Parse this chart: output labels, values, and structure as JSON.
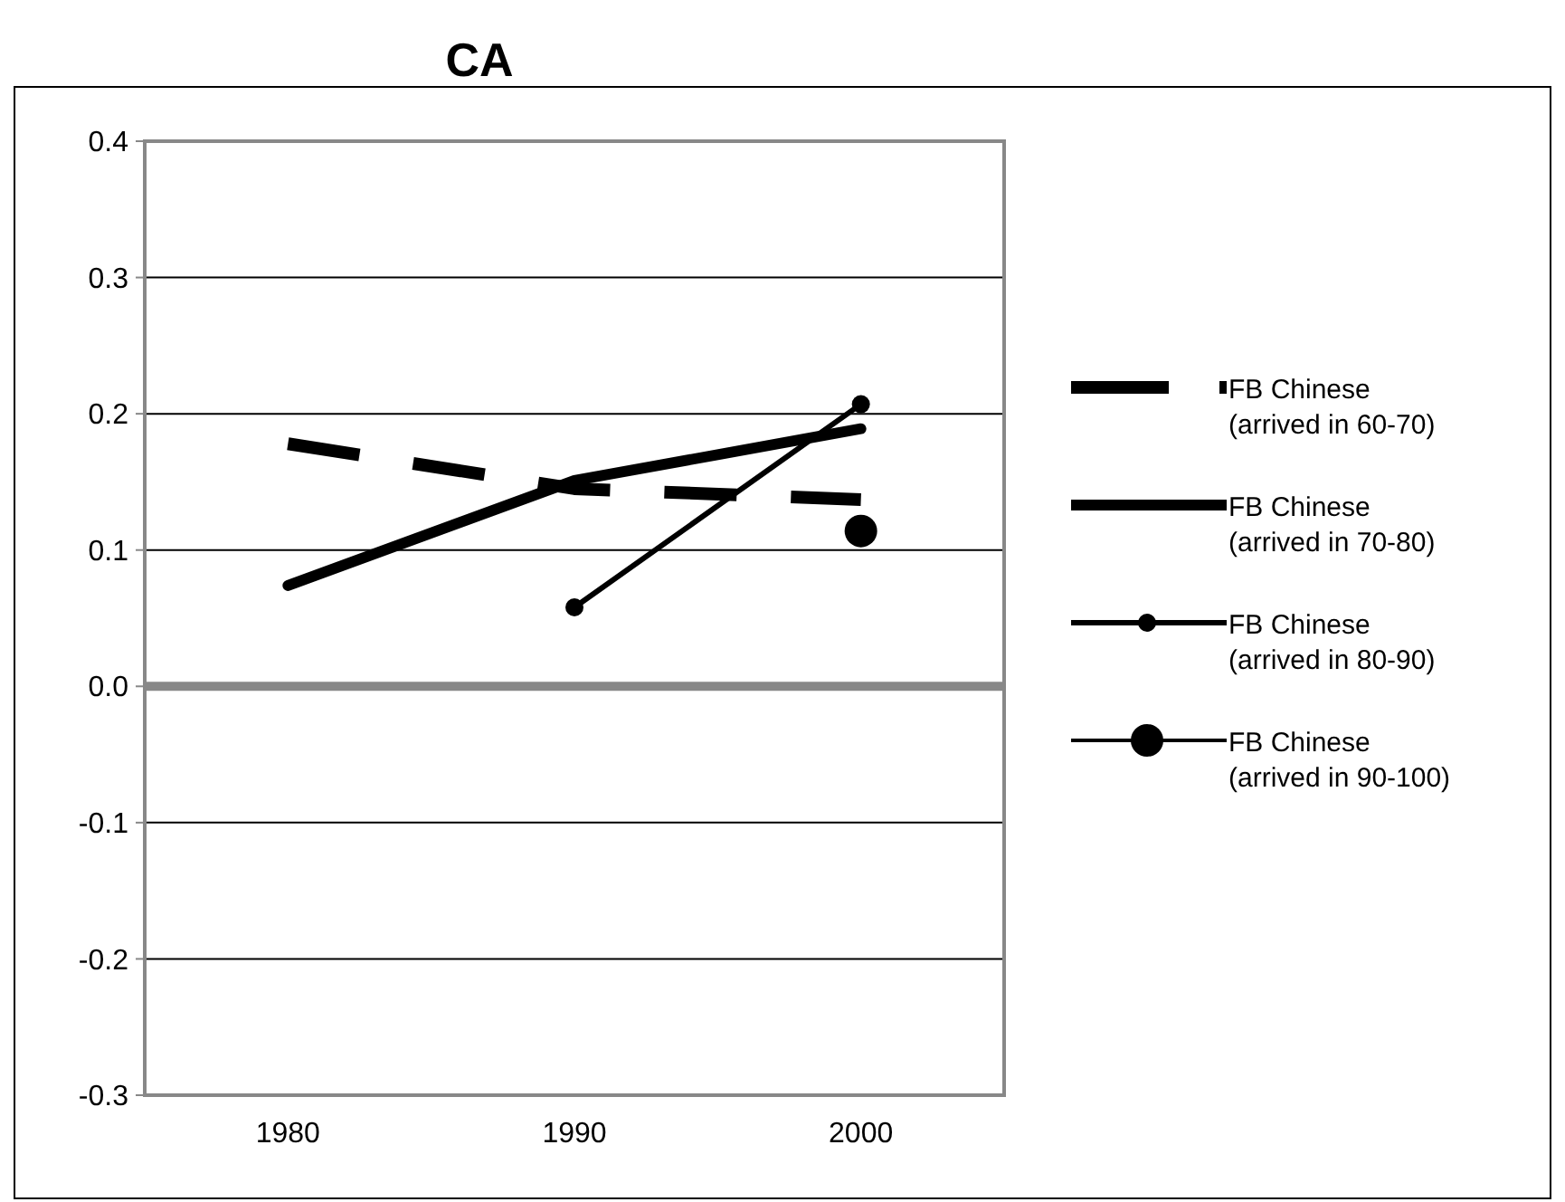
{
  "chart_data": {
    "type": "line",
    "title": "CA",
    "categories": [
      "1980",
      "1990",
      "2000"
    ],
    "series": [
      {
        "name": "FB Chinese (arrived in 60-70)",
        "color": "#000000",
        "values": [
          0.178,
          0.145,
          0.137
        ],
        "line_style": "dashed",
        "marker": "none"
      },
      {
        "name": "FB Chinese (arrived in 70-80)",
        "color": "#000000",
        "values": [
          0.074,
          0.151,
          0.189
        ],
        "line_style": "solid",
        "marker": "none"
      },
      {
        "name": "FB Chinese (arrived in 80-90)",
        "color": "#000000",
        "values": [
          null,
          0.058,
          0.207
        ],
        "line_style": "solid",
        "marker": "circle"
      },
      {
        "name": "FB Chinese (arrived in 90-100)",
        "color": "#000000",
        "values": [
          null,
          null,
          0.114
        ],
        "line_style": "solid",
        "marker": "circle"
      }
    ],
    "ylim": [
      -0.3,
      0.4
    ],
    "yticks": [
      -0.3,
      -0.2,
      -0.1,
      {
        "value": 0,
        "label": "0.0"
      },
      0.1,
      0.2,
      0.3,
      0.4
    ],
    "grid": "y",
    "legend": "right"
  }
}
